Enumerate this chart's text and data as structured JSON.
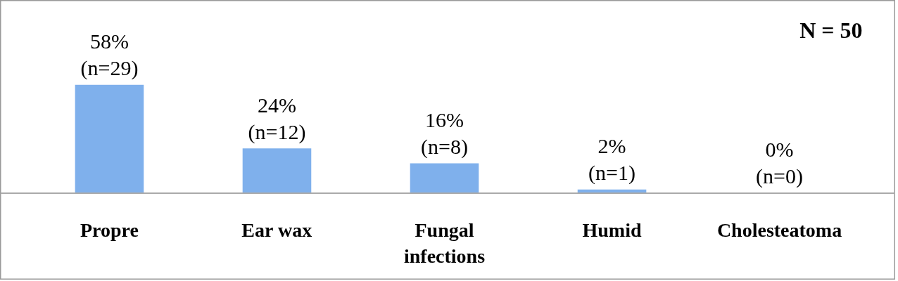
{
  "chart_data": {
    "type": "bar",
    "categories": [
      "Propre",
      "Ear wax",
      "Fungal infections",
      "Humid",
      "Cholesteatoma"
    ],
    "values": [
      58,
      24,
      16,
      2,
      0
    ],
    "value_labels": [
      "58%\n(n=29)",
      "24%\n(n=12)",
      "16%\n(n=8)",
      "2%\n(n=1)",
      "0%\n(n=0)"
    ],
    "color": "#7fb0ec",
    "annotations": [
      "N = 50"
    ]
  }
}
